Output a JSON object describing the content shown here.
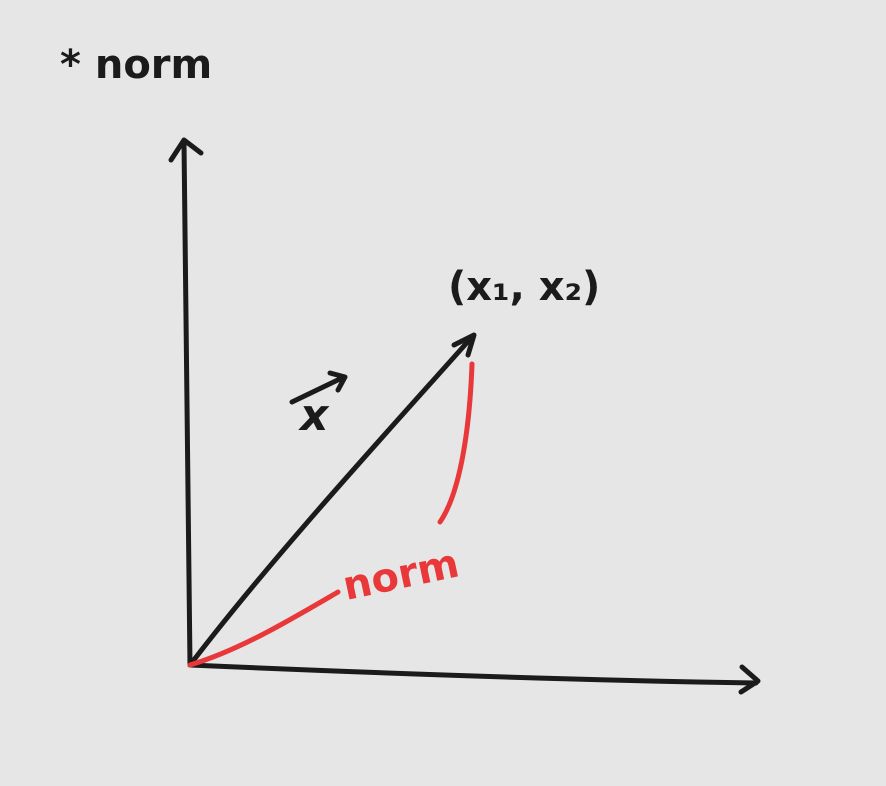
{
  "title": "* norm",
  "vector_label": "x",
  "point_label": "(x₁, x₂)",
  "curve_label": "norm",
  "colors": {
    "background": "#e6e6e6",
    "ink": "#1b1b1b",
    "highlight": "#e8383a"
  }
}
